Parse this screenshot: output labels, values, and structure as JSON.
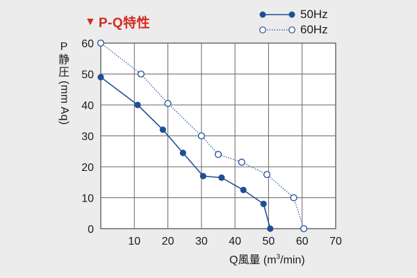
{
  "header": {
    "title_marker": "▼",
    "title": "P-Q特性"
  },
  "legend": [
    {
      "label": "50Hz",
      "color": "#1f4e96",
      "marker": "filled-circle",
      "line": "solid"
    },
    {
      "label": "60Hz",
      "color": "#1f4e96",
      "marker": "open-circle",
      "line": "dotted"
    }
  ],
  "axes": {
    "ylabel_p": "P",
    "ylabel_chars": [
      "静",
      "圧"
    ],
    "ylabel_unit": "(mm Aq)",
    "xlabel_main": "Q風量 (m",
    "xlabel_sup": "3",
    "xlabel_end": "/min)"
  },
  "chart_data": {
    "type": "line",
    "title": "P-Q特性",
    "xlabel": "Q風量 (m3/min)",
    "ylabel": "P 静圧(mm Aq)",
    "xlim": [
      0,
      70
    ],
    "ylim": [
      0,
      60
    ],
    "xticks": [
      10,
      20,
      30,
      40,
      50,
      60,
      70
    ],
    "yticks": [
      0,
      10,
      20,
      30,
      40,
      50,
      60
    ],
    "grid": true,
    "legend_position": "top-right",
    "series": [
      {
        "name": "50Hz",
        "x": [
          0,
          11,
          18.5,
          24.5,
          30.5,
          36,
          42.5,
          48.5,
          50.5
        ],
        "y": [
          49,
          40,
          32,
          24.5,
          17,
          16.5,
          12.5,
          8,
          0
        ]
      },
      {
        "name": "60Hz",
        "x": [
          0,
          12,
          20,
          30,
          35,
          42,
          49.5,
          57.5,
          60.5
        ],
        "y": [
          60,
          50,
          40.5,
          30,
          24,
          21.5,
          17.5,
          10,
          0
        ]
      }
    ]
  }
}
